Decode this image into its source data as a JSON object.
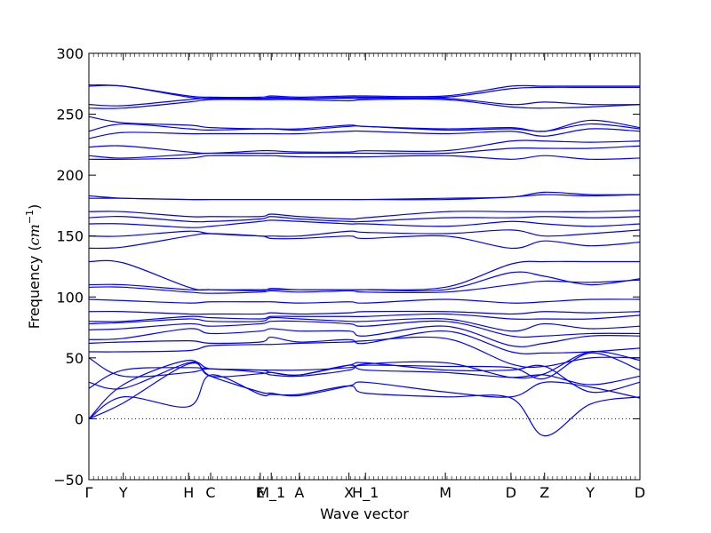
{
  "chart_data": {
    "type": "line",
    "xlabel": "Wave vector",
    "ylabel_prefix": "Frequency (",
    "ylabel_unit_base": "cm",
    "ylabel_unit_exp": "−1",
    "ylabel_suffix": ")",
    "ylim": [
      -50,
      300
    ],
    "yticks": [
      -50,
      0,
      50,
      100,
      150,
      200,
      250,
      300
    ],
    "ytick_labels": [
      "−50",
      "0",
      "50",
      "100",
      "150",
      "200",
      "250",
      "300"
    ],
    "xlim": [
      0,
      1
    ],
    "xticks": [
      {
        "label": "Γ",
        "x": 0.0
      },
      {
        "label": "Y",
        "x": 0.0625
      },
      {
        "label": "H",
        "x": 0.181
      },
      {
        "label": "C",
        "x": 0.221
      },
      {
        "label": "E",
        "x": 0.311
      },
      {
        "label": "M_1",
        "x": 0.331
      },
      {
        "label": "A",
        "x": 0.382
      },
      {
        "label": "X",
        "x": 0.472
      },
      {
        "label": "H_1",
        "x": 0.502
      },
      {
        "label": "M",
        "x": 0.647
      },
      {
        "label": "D",
        "x": 0.766
      },
      {
        "label": "Z",
        "x": 0.827
      },
      {
        "label": "Y",
        "x": 0.91
      },
      {
        "label": "D",
        "x": 1.0
      }
    ],
    "zero_line": true,
    "line_color": "#0000ff",
    "series": [
      {
        "x": [
          0,
          0.0625,
          0.181,
          0.221,
          0.311,
          0.331,
          0.382,
          0.472,
          0.502,
          0.647,
          0.766,
          0.827,
          0.91,
          1.0
        ],
        "y": [
          0,
          13,
          45,
          35,
          22,
          21,
          19,
          27,
          30,
          22,
          18,
          30,
          26,
          17
        ]
      },
      {
        "x": [
          0,
          0.0625,
          0.181,
          0.221,
          0.311,
          0.331,
          0.382,
          0.472,
          0.502,
          0.647,
          0.766,
          0.827,
          0.91,
          1.0
        ],
        "y": [
          0,
          18,
          10,
          36,
          20,
          20,
          20,
          27,
          21,
          18,
          17,
          -14,
          12,
          18
        ]
      },
      {
        "x": [
          0,
          0.0625,
          0.181,
          0.221,
          0.311,
          0.331,
          0.382,
          0.472,
          0.502,
          0.647,
          0.766,
          0.827,
          0.91,
          1.0
        ],
        "y": [
          0,
          28,
          48,
          35,
          37,
          38,
          36,
          44,
          40,
          38,
          34,
          36,
          28,
          35
        ]
      },
      {
        "x": [
          0,
          0.0625,
          0.181,
          0.221,
          0.311,
          0.331,
          0.382,
          0.472,
          0.502,
          0.647,
          0.766,
          0.827,
          0.91,
          1.0
        ],
        "y": [
          25,
          40,
          42,
          41,
          40,
          38,
          36,
          44,
          46,
          40,
          40,
          43,
          22,
          30
        ]
      },
      {
        "x": [
          0,
          0.0625,
          0.181,
          0.221,
          0.311,
          0.331,
          0.382,
          0.472,
          0.502,
          0.647,
          0.766,
          0.827,
          0.91,
          1.0
        ],
        "y": [
          30,
          25,
          46,
          41,
          40,
          40,
          40,
          42,
          44,
          43,
          42,
          33,
          54,
          40
        ]
      },
      {
        "x": [
          0,
          0.0625,
          0.181,
          0.221,
          0.311,
          0.331,
          0.382,
          0.472,
          0.502,
          0.647,
          0.766,
          0.827,
          0.91,
          1.0
        ],
        "y": [
          50,
          35,
          38,
          41,
          38,
          36,
          35,
          40,
          45,
          46,
          34,
          37,
          55,
          48
        ]
      },
      {
        "x": [
          0,
          0.0625,
          0.181,
          0.221,
          0.311,
          0.331,
          0.382,
          0.472,
          0.502,
          0.647,
          0.766,
          0.827,
          0.91,
          1.0
        ],
        "y": [
          55,
          55,
          56,
          60,
          61,
          61,
          62,
          63,
          64,
          66,
          45,
          43,
          50,
          50
        ]
      },
      {
        "x": [
          0,
          0.0625,
          0.181,
          0.221,
          0.311,
          0.331,
          0.382,
          0.472,
          0.502,
          0.647,
          0.766,
          0.827,
          0.91,
          1.0
        ],
        "y": [
          62,
          63,
          64,
          62,
          63,
          67,
          63,
          65,
          62,
          72,
          55,
          54,
          55,
          58
        ]
      },
      {
        "x": [
          0,
          0.0625,
          0.181,
          0.221,
          0.311,
          0.331,
          0.382,
          0.472,
          0.502,
          0.647,
          0.766,
          0.827,
          0.91,
          1.0
        ],
        "y": [
          65,
          66,
          74,
          70,
          72,
          74,
          72,
          72,
          68,
          76,
          60,
          62,
          68,
          68
        ]
      },
      {
        "x": [
          0,
          0.0625,
          0.181,
          0.221,
          0.311,
          0.331,
          0.382,
          0.472,
          0.502,
          0.647,
          0.766,
          0.827,
          0.91,
          1.0
        ],
        "y": [
          73,
          74,
          78,
          76,
          78,
          80,
          80,
          78,
          76,
          80,
          68,
          68,
          70,
          70
        ]
      },
      {
        "x": [
          0,
          0.0625,
          0.181,
          0.221,
          0.311,
          0.331,
          0.382,
          0.472,
          0.502,
          0.647,
          0.766,
          0.827,
          0.91,
          1.0
        ],
        "y": [
          78,
          79,
          82,
          80,
          80,
          83,
          82,
          80,
          80,
          82,
          72,
          78,
          74,
          76
        ]
      },
      {
        "x": [
          0,
          0.0625,
          0.181,
          0.221,
          0.311,
          0.331,
          0.382,
          0.472,
          0.502,
          0.647,
          0.766,
          0.827,
          0.91,
          1.0
        ],
        "y": [
          80,
          80,
          84,
          83,
          82,
          84,
          84,
          84,
          84,
          86,
          82,
          82,
          82,
          85
        ]
      },
      {
        "x": [
          0,
          0.0625,
          0.181,
          0.221,
          0.311,
          0.331,
          0.382,
          0.472,
          0.502,
          0.647,
          0.766,
          0.827,
          0.91,
          1.0
        ],
        "y": [
          88,
          88,
          86,
          86,
          86,
          87,
          86,
          87,
          88,
          88,
          86,
          88,
          87,
          88
        ]
      },
      {
        "x": [
          0,
          0.0625,
          0.181,
          0.221,
          0.311,
          0.331,
          0.382,
          0.472,
          0.502,
          0.647,
          0.766,
          0.827,
          0.91,
          1.0
        ],
        "y": [
          98,
          97,
          95,
          96,
          96,
          96,
          95,
          96,
          95,
          98,
          95,
          96,
          98,
          98
        ]
      },
      {
        "x": [
          0,
          0.0625,
          0.181,
          0.221,
          0.311,
          0.331,
          0.382,
          0.472,
          0.502,
          0.647,
          0.766,
          0.827,
          0.91,
          1.0
        ],
        "y": [
          108,
          108,
          104,
          103,
          104,
          105,
          104,
          105,
          104,
          104,
          110,
          113,
          112,
          114
        ]
      },
      {
        "x": [
          0,
          0.0625,
          0.181,
          0.221,
          0.311,
          0.331,
          0.382,
          0.472,
          0.502,
          0.647,
          0.766,
          0.827,
          0.91,
          1.0
        ],
        "y": [
          110,
          110,
          106,
          106,
          105,
          107,
          106,
          106,
          106,
          106,
          120,
          117,
          110,
          115
        ]
      },
      {
        "x": [
          0,
          0.0625,
          0.181,
          0.221,
          0.311,
          0.331,
          0.382,
          0.472,
          0.502,
          0.647,
          0.766,
          0.827,
          0.91,
          1.0
        ],
        "y": [
          129,
          128,
          108,
          106,
          106,
          106,
          106,
          106,
          106,
          108,
          127,
          129,
          129,
          129
        ]
      },
      {
        "x": [
          0,
          0.0625,
          0.181,
          0.221,
          0.311,
          0.331,
          0.382,
          0.472,
          0.502,
          0.647,
          0.766,
          0.827,
          0.91,
          1.0
        ],
        "y": [
          140,
          141,
          150,
          152,
          150,
          148,
          148,
          150,
          148,
          150,
          140,
          146,
          142,
          145
        ]
      },
      {
        "x": [
          0,
          0.0625,
          0.181,
          0.221,
          0.311,
          0.331,
          0.382,
          0.472,
          0.502,
          0.647,
          0.766,
          0.827,
          0.91,
          1.0
        ],
        "y": [
          150,
          150,
          154,
          152,
          150,
          150,
          150,
          154,
          153,
          152,
          155,
          150,
          152,
          155
        ]
      },
      {
        "x": [
          0,
          0.0625,
          0.181,
          0.221,
          0.311,
          0.331,
          0.382,
          0.472,
          0.502,
          0.647,
          0.766,
          0.827,
          0.91,
          1.0
        ],
        "y": [
          160,
          160,
          157,
          158,
          162,
          163,
          162,
          160,
          160,
          158,
          162,
          160,
          158,
          160
        ]
      },
      {
        "x": [
          0,
          0.0625,
          0.181,
          0.221,
          0.311,
          0.331,
          0.382,
          0.472,
          0.502,
          0.647,
          0.766,
          0.827,
          0.91,
          1.0
        ],
        "y": [
          165,
          166,
          162,
          162,
          164,
          166,
          164,
          162,
          162,
          165,
          165,
          166,
          165,
          166
        ]
      },
      {
        "x": [
          0,
          0.0625,
          0.181,
          0.221,
          0.311,
          0.331,
          0.382,
          0.472,
          0.502,
          0.647,
          0.766,
          0.827,
          0.91,
          1.0
        ],
        "y": [
          170,
          170,
          166,
          166,
          166,
          168,
          166,
          164,
          165,
          170,
          170,
          170,
          170,
          171
        ]
      },
      {
        "x": [
          0,
          0.0625,
          0.181,
          0.221,
          0.311,
          0.331,
          0.382,
          0.472,
          0.502,
          0.647,
          0.766,
          0.827,
          0.91,
          1.0
        ],
        "y": [
          181,
          181,
          180,
          180,
          180,
          180,
          180,
          180,
          180,
          180,
          182,
          184,
          183,
          184
        ]
      },
      {
        "x": [
          0,
          0.0625,
          0.181,
          0.221,
          0.311,
          0.331,
          0.382,
          0.472,
          0.502,
          0.647,
          0.766,
          0.827,
          0.91,
          1.0
        ],
        "y": [
          183,
          181,
          180,
          180,
          180,
          180,
          180,
          180,
          180,
          181,
          182,
          186,
          184,
          184
        ]
      },
      {
        "x": [
          0,
          0.0625,
          0.181,
          0.221,
          0.311,
          0.331,
          0.382,
          0.472,
          0.502,
          0.647,
          0.766,
          0.827,
          0.91,
          1.0
        ],
        "y": [
          213,
          213,
          214,
          216,
          216,
          216,
          215,
          215,
          215,
          216,
          213,
          216,
          213,
          214
        ]
      },
      {
        "x": [
          0,
          0.0625,
          0.181,
          0.221,
          0.311,
          0.331,
          0.382,
          0.472,
          0.502,
          0.647,
          0.766,
          0.827,
          0.91,
          1.0
        ],
        "y": [
          216,
          214,
          217,
          218,
          218,
          218,
          218,
          218,
          218,
          218,
          222,
          222,
          222,
          224
        ]
      },
      {
        "x": [
          0,
          0.0625,
          0.181,
          0.221,
          0.311,
          0.331,
          0.382,
          0.472,
          0.502,
          0.647,
          0.766,
          0.827,
          0.91,
          1.0
        ],
        "y": [
          223,
          224,
          219,
          218,
          220,
          220,
          219,
          219,
          220,
          220,
          228,
          228,
          227,
          228
        ]
      },
      {
        "x": [
          0,
          0.0625,
          0.181,
          0.221,
          0.311,
          0.331,
          0.382,
          0.472,
          0.502,
          0.647,
          0.766,
          0.827,
          0.91,
          1.0
        ],
        "y": [
          230,
          235,
          234,
          234,
          234,
          234,
          234,
          236,
          236,
          234,
          236,
          232,
          238,
          236
        ]
      },
      {
        "x": [
          0,
          0.0625,
          0.181,
          0.221,
          0.311,
          0.331,
          0.382,
          0.472,
          0.502,
          0.647,
          0.766,
          0.827,
          0.91,
          1.0
        ],
        "y": [
          236,
          242,
          238,
          237,
          238,
          238,
          237,
          240,
          240,
          237,
          238,
          236,
          242,
          238
        ]
      },
      {
        "x": [
          0,
          0.0625,
          0.181,
          0.221,
          0.311,
          0.331,
          0.382,
          0.472,
          0.502,
          0.647,
          0.766,
          0.827,
          0.91,
          1.0
        ],
        "y": [
          248,
          243,
          241,
          239,
          238,
          238,
          238,
          241,
          240,
          238,
          239,
          236,
          245,
          239
        ]
      },
      {
        "x": [
          0,
          0.0625,
          0.181,
          0.221,
          0.311,
          0.331,
          0.382,
          0.472,
          0.502,
          0.647,
          0.766,
          0.827,
          0.91,
          1.0
        ],
        "y": [
          255,
          255,
          260,
          262,
          262,
          262,
          262,
          261,
          262,
          262,
          256,
          255,
          256,
          258
        ]
      },
      {
        "x": [
          0,
          0.0625,
          0.181,
          0.221,
          0.311,
          0.331,
          0.382,
          0.472,
          0.502,
          0.647,
          0.766,
          0.827,
          0.91,
          1.0
        ],
        "y": [
          258,
          257,
          262,
          263,
          263,
          263,
          263,
          263,
          263,
          263,
          258,
          260,
          258,
          258
        ]
      },
      {
        "x": [
          0,
          0.0625,
          0.181,
          0.221,
          0.311,
          0.331,
          0.382,
          0.472,
          0.502,
          0.647,
          0.766,
          0.827,
          0.91,
          1.0
        ],
        "y": [
          273,
          273,
          264,
          263,
          263,
          264,
          263,
          264,
          264,
          264,
          271,
          272,
          272,
          272
        ]
      },
      {
        "x": [
          0,
          0.0625,
          0.181,
          0.221,
          0.311,
          0.331,
          0.382,
          0.472,
          0.502,
          0.647,
          0.766,
          0.827,
          0.91,
          1.0
        ],
        "y": [
          274,
          273,
          265,
          264,
          264,
          265,
          264,
          265,
          265,
          265,
          273,
          273,
          273,
          273
        ]
      }
    ]
  }
}
